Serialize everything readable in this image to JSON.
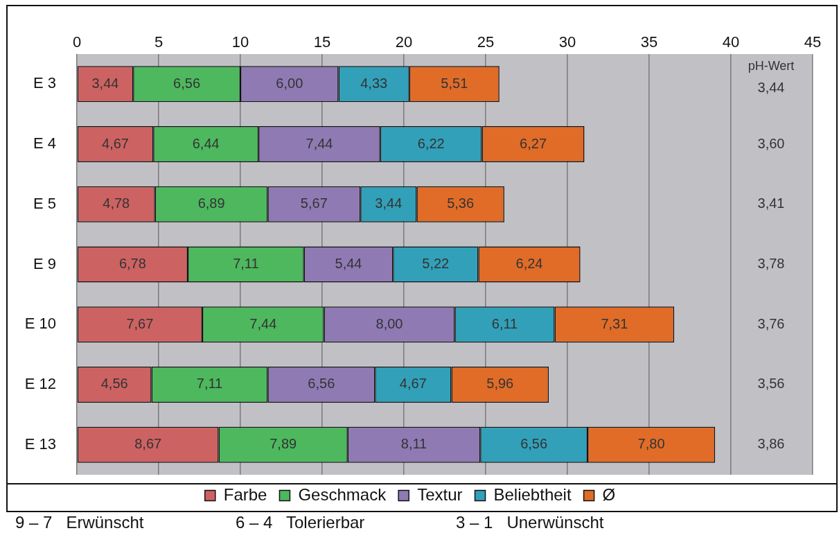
{
  "chart_data": {
    "type": "bar",
    "orientation": "horizontal",
    "stacked": true,
    "categories": [
      "E 3",
      "E 4",
      "E 5",
      "E 9",
      "E 10",
      "E 12",
      "E 13"
    ],
    "series": [
      {
        "name": "Farbe",
        "color": "#cd6262",
        "values": [
          3.44,
          4.67,
          4.78,
          6.78,
          7.67,
          4.56,
          8.67
        ],
        "value_labels": [
          "3,44",
          "4,67",
          "4,78",
          "6,78",
          "7,67",
          "4,56",
          "8,67"
        ]
      },
      {
        "name": "Geschmack",
        "color": "#4db85e",
        "values": [
          6.56,
          6.44,
          6.89,
          7.11,
          7.44,
          7.11,
          7.89
        ],
        "value_labels": [
          "6,56",
          "6,44",
          "6,89",
          "7,11",
          "7,44",
          "7,11",
          "7,89"
        ]
      },
      {
        "name": "Textur",
        "color": "#8f7ab4",
        "values": [
          6.0,
          7.44,
          5.67,
          5.44,
          8.0,
          6.56,
          8.11
        ],
        "value_labels": [
          "6,00",
          "7,44",
          "5,67",
          "5,44",
          "8,00",
          "6,56",
          "8,11"
        ]
      },
      {
        "name": "Beliebtheit",
        "color": "#32a0b8",
        "values": [
          4.33,
          6.22,
          3.44,
          5.22,
          6.11,
          4.67,
          6.56
        ],
        "value_labels": [
          "4,33",
          "6,22",
          "3,44",
          "5,22",
          "6,11",
          "4,67",
          "6,56"
        ]
      },
      {
        "name": "Ø",
        "color": "#e06c28",
        "values": [
          5.51,
          6.27,
          5.36,
          6.24,
          7.31,
          5.96,
          7.8
        ],
        "value_labels": [
          "5,51",
          "6,27",
          "5,36",
          "6,24",
          "7,31",
          "5,96",
          "7,80"
        ]
      }
    ],
    "xlim": [
      0,
      45
    ],
    "xticks": [
      0,
      5,
      10,
      15,
      20,
      25,
      30,
      35,
      40,
      45
    ],
    "grid": "x",
    "legend": "bottom",
    "annotations": [
      "pH-Wert",
      "3,44",
      "3,60",
      "3,41",
      "3,78",
      "3,76",
      "3,56",
      "3,86",
      "9 – 7   Erwünscht",
      "6 – 4   Tolerierbar",
      "3 – 1   Unerwünscht"
    ]
  }
}
